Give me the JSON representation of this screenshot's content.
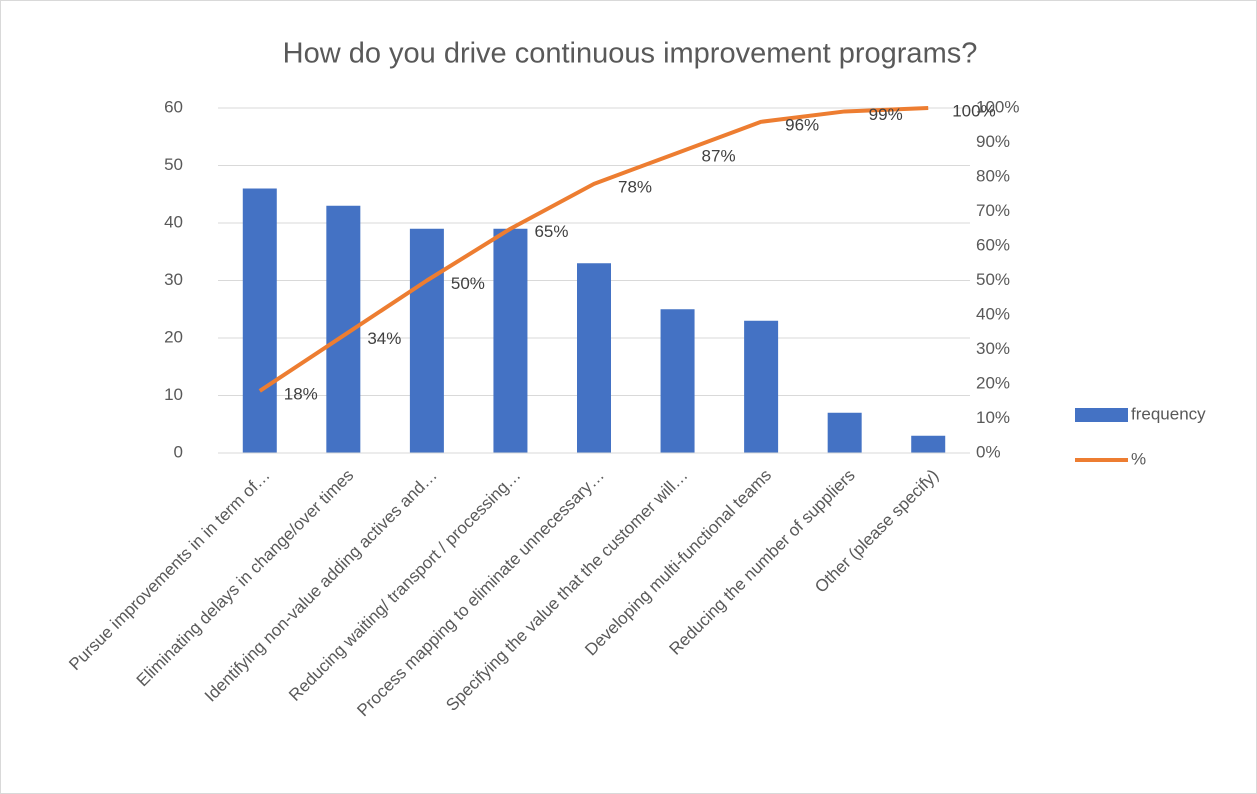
{
  "chart_data": {
    "type": "bar",
    "title": "How do you drive continuous improvement programs?",
    "categories": [
      "Pursue improvements in in term of…",
      "Eliminating delays in change/over times",
      "Identifying non-value adding actives and…",
      "Reducing waiting/ transport / processing…",
      "Process mapping to eliminate unnecessary…",
      "Specifying the value that the customer will…",
      "Developing multi-functional teams",
      "Reducing the number of suppliers",
      "Other (please specify)"
    ],
    "series": [
      {
        "name": "frequency",
        "type": "bar",
        "color": "#4472c4",
        "values": [
          46,
          43,
          39,
          39,
          33,
          25,
          23,
          7,
          3
        ]
      },
      {
        "name": "%",
        "type": "line",
        "axis": "y2",
        "color": "#ed7d31",
        "values": [
          18,
          34,
          50,
          65,
          78,
          87,
          96,
          99,
          100
        ],
        "value_labels": [
          "18%",
          "34%",
          "50%",
          "65%",
          "78%",
          "87%",
          "96%",
          "99%",
          "100%"
        ]
      }
    ],
    "ylim": [
      0,
      60
    ],
    "yticks": [
      0,
      10,
      20,
      30,
      40,
      50,
      60
    ],
    "y2lim": [
      0,
      100
    ],
    "y2ticks": [
      {
        "value": 0,
        "label": "0%"
      },
      {
        "value": 10,
        "label": "10%"
      },
      {
        "value": 20,
        "label": "20%"
      },
      {
        "value": 30,
        "label": "30%"
      },
      {
        "value": 40,
        "label": "40%"
      },
      {
        "value": 50,
        "label": "50%"
      },
      {
        "value": 60,
        "label": "60%"
      },
      {
        "value": 70,
        "label": "70%"
      },
      {
        "value": 80,
        "label": "80%"
      },
      {
        "value": 90,
        "label": "90%"
      },
      {
        "value": 100,
        "label": "100%"
      }
    ],
    "grid": true,
    "legend": "right"
  }
}
